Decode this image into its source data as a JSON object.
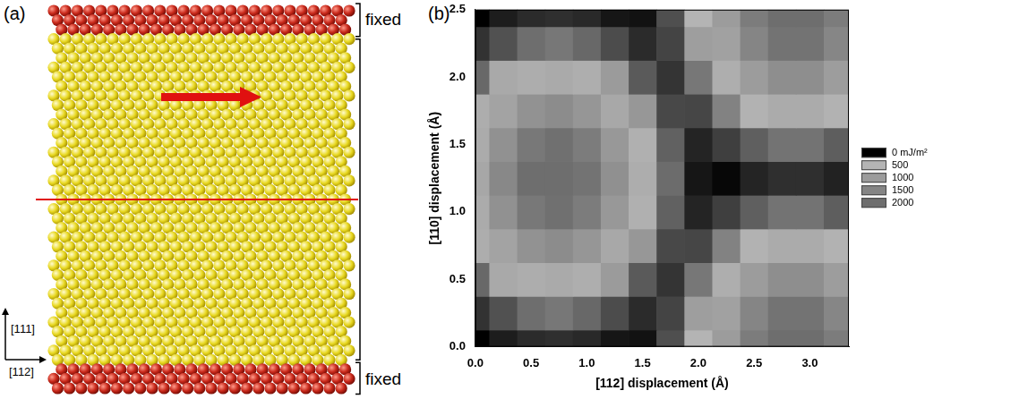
{
  "chart_data": {
    "type": "heatmap",
    "panel_label": "(b)",
    "x_label": "[112] displacement (Å)",
    "y_label": "[110] displacement (Å)",
    "xlim": [
      0,
      3.35
    ],
    "ylim": [
      0,
      2.5
    ],
    "xticks": [
      {
        "value": 0,
        "label": "0.0"
      },
      {
        "value": 0.5,
        "label": "0.5"
      },
      {
        "value": 1,
        "label": "1.0"
      },
      {
        "value": 1.5,
        "label": "1.5"
      },
      {
        "value": 2,
        "label": "2.0"
      },
      {
        "value": 2.5,
        "label": "2.5"
      },
      {
        "value": 3,
        "label": "3.0"
      }
    ],
    "yticks": [
      {
        "value": 0,
        "label": "0.0"
      },
      {
        "value": 0.5,
        "label": "0.5"
      },
      {
        "value": 1,
        "label": "1.0"
      },
      {
        "value": 1.5,
        "label": "1.5"
      },
      {
        "value": 2,
        "label": "2.0"
      },
      {
        "value": 2.5,
        "label": "2.5"
      }
    ],
    "grid": false,
    "cells": {
      "x": [
        0,
        0.25,
        0.5,
        0.75,
        1,
        1.25,
        1.5,
        1.75,
        2,
        2.25,
        2.5,
        2.75,
        3,
        3.25
      ],
      "y": [
        0,
        0.25,
        0.5,
        0.75,
        1,
        1.25,
        1.5,
        1.75,
        2,
        2.25,
        2.5
      ],
      "values": [
        [
          0,
          80,
          120,
          130,
          115,
          60,
          50,
          220,
          500,
          1000,
          1700,
          2150,
          2150,
          1700
        ],
        [
          140,
          225,
          305,
          330,
          290,
          210,
          120,
          190,
          440,
          900,
          1500,
          1900,
          1900,
          1480
        ],
        [
          290,
          470,
          650,
          700,
          620,
          430,
          250,
          145,
          330,
          620,
          990,
          1310,
          1300,
          980
        ],
        [
          480,
          860,
          1210,
          1350,
          1130,
          750,
          420,
          200,
          195,
          360,
          550,
          680,
          680,
          540
        ],
        [
          680,
          1250,
          1790,
          1950,
          1700,
          1090,
          580,
          270,
          100,
          175,
          265,
          320,
          320,
          260
        ],
        [
          770,
          1430,
          2000,
          2220,
          1900,
          1260,
          650,
          300,
          60,
          20,
          100,
          130,
          130,
          95
        ],
        [
          680,
          1250,
          1790,
          1950,
          1700,
          1090,
          580,
          270,
          100,
          175,
          265,
          320,
          320,
          260
        ],
        [
          480,
          860,
          1210,
          1350,
          1130,
          750,
          420,
          200,
          195,
          360,
          550,
          680,
          680,
          540
        ],
        [
          290,
          470,
          650,
          700,
          620,
          430,
          250,
          145,
          330,
          620,
          990,
          1310,
          1300,
          980
        ],
        [
          140,
          225,
          305,
          330,
          290,
          210,
          120,
          190,
          440,
          900,
          1500,
          1900,
          1900,
          1480
        ],
        [
          0,
          80,
          120,
          130,
          115,
          60,
          50,
          220,
          500,
          1000,
          1700,
          2150,
          2150,
          1700
        ]
      ]
    },
    "colorbar": {
      "range": [
        0,
        2000
      ],
      "ticks": [
        {
          "value": 0,
          "label": "0 mJ/m²"
        },
        500,
        1000,
        1500,
        2000
      ],
      "colors": [
        "#000000",
        "#b4b4b4",
        "#9c9c9c",
        "#858585",
        "#6e6e6e"
      ]
    }
  },
  "diagram": {
    "panel_label": "(a)",
    "fixed_labels": [
      "fixed",
      "fixed"
    ],
    "direction_labels": [
      "[111]",
      "[112]"
    ]
  }
}
